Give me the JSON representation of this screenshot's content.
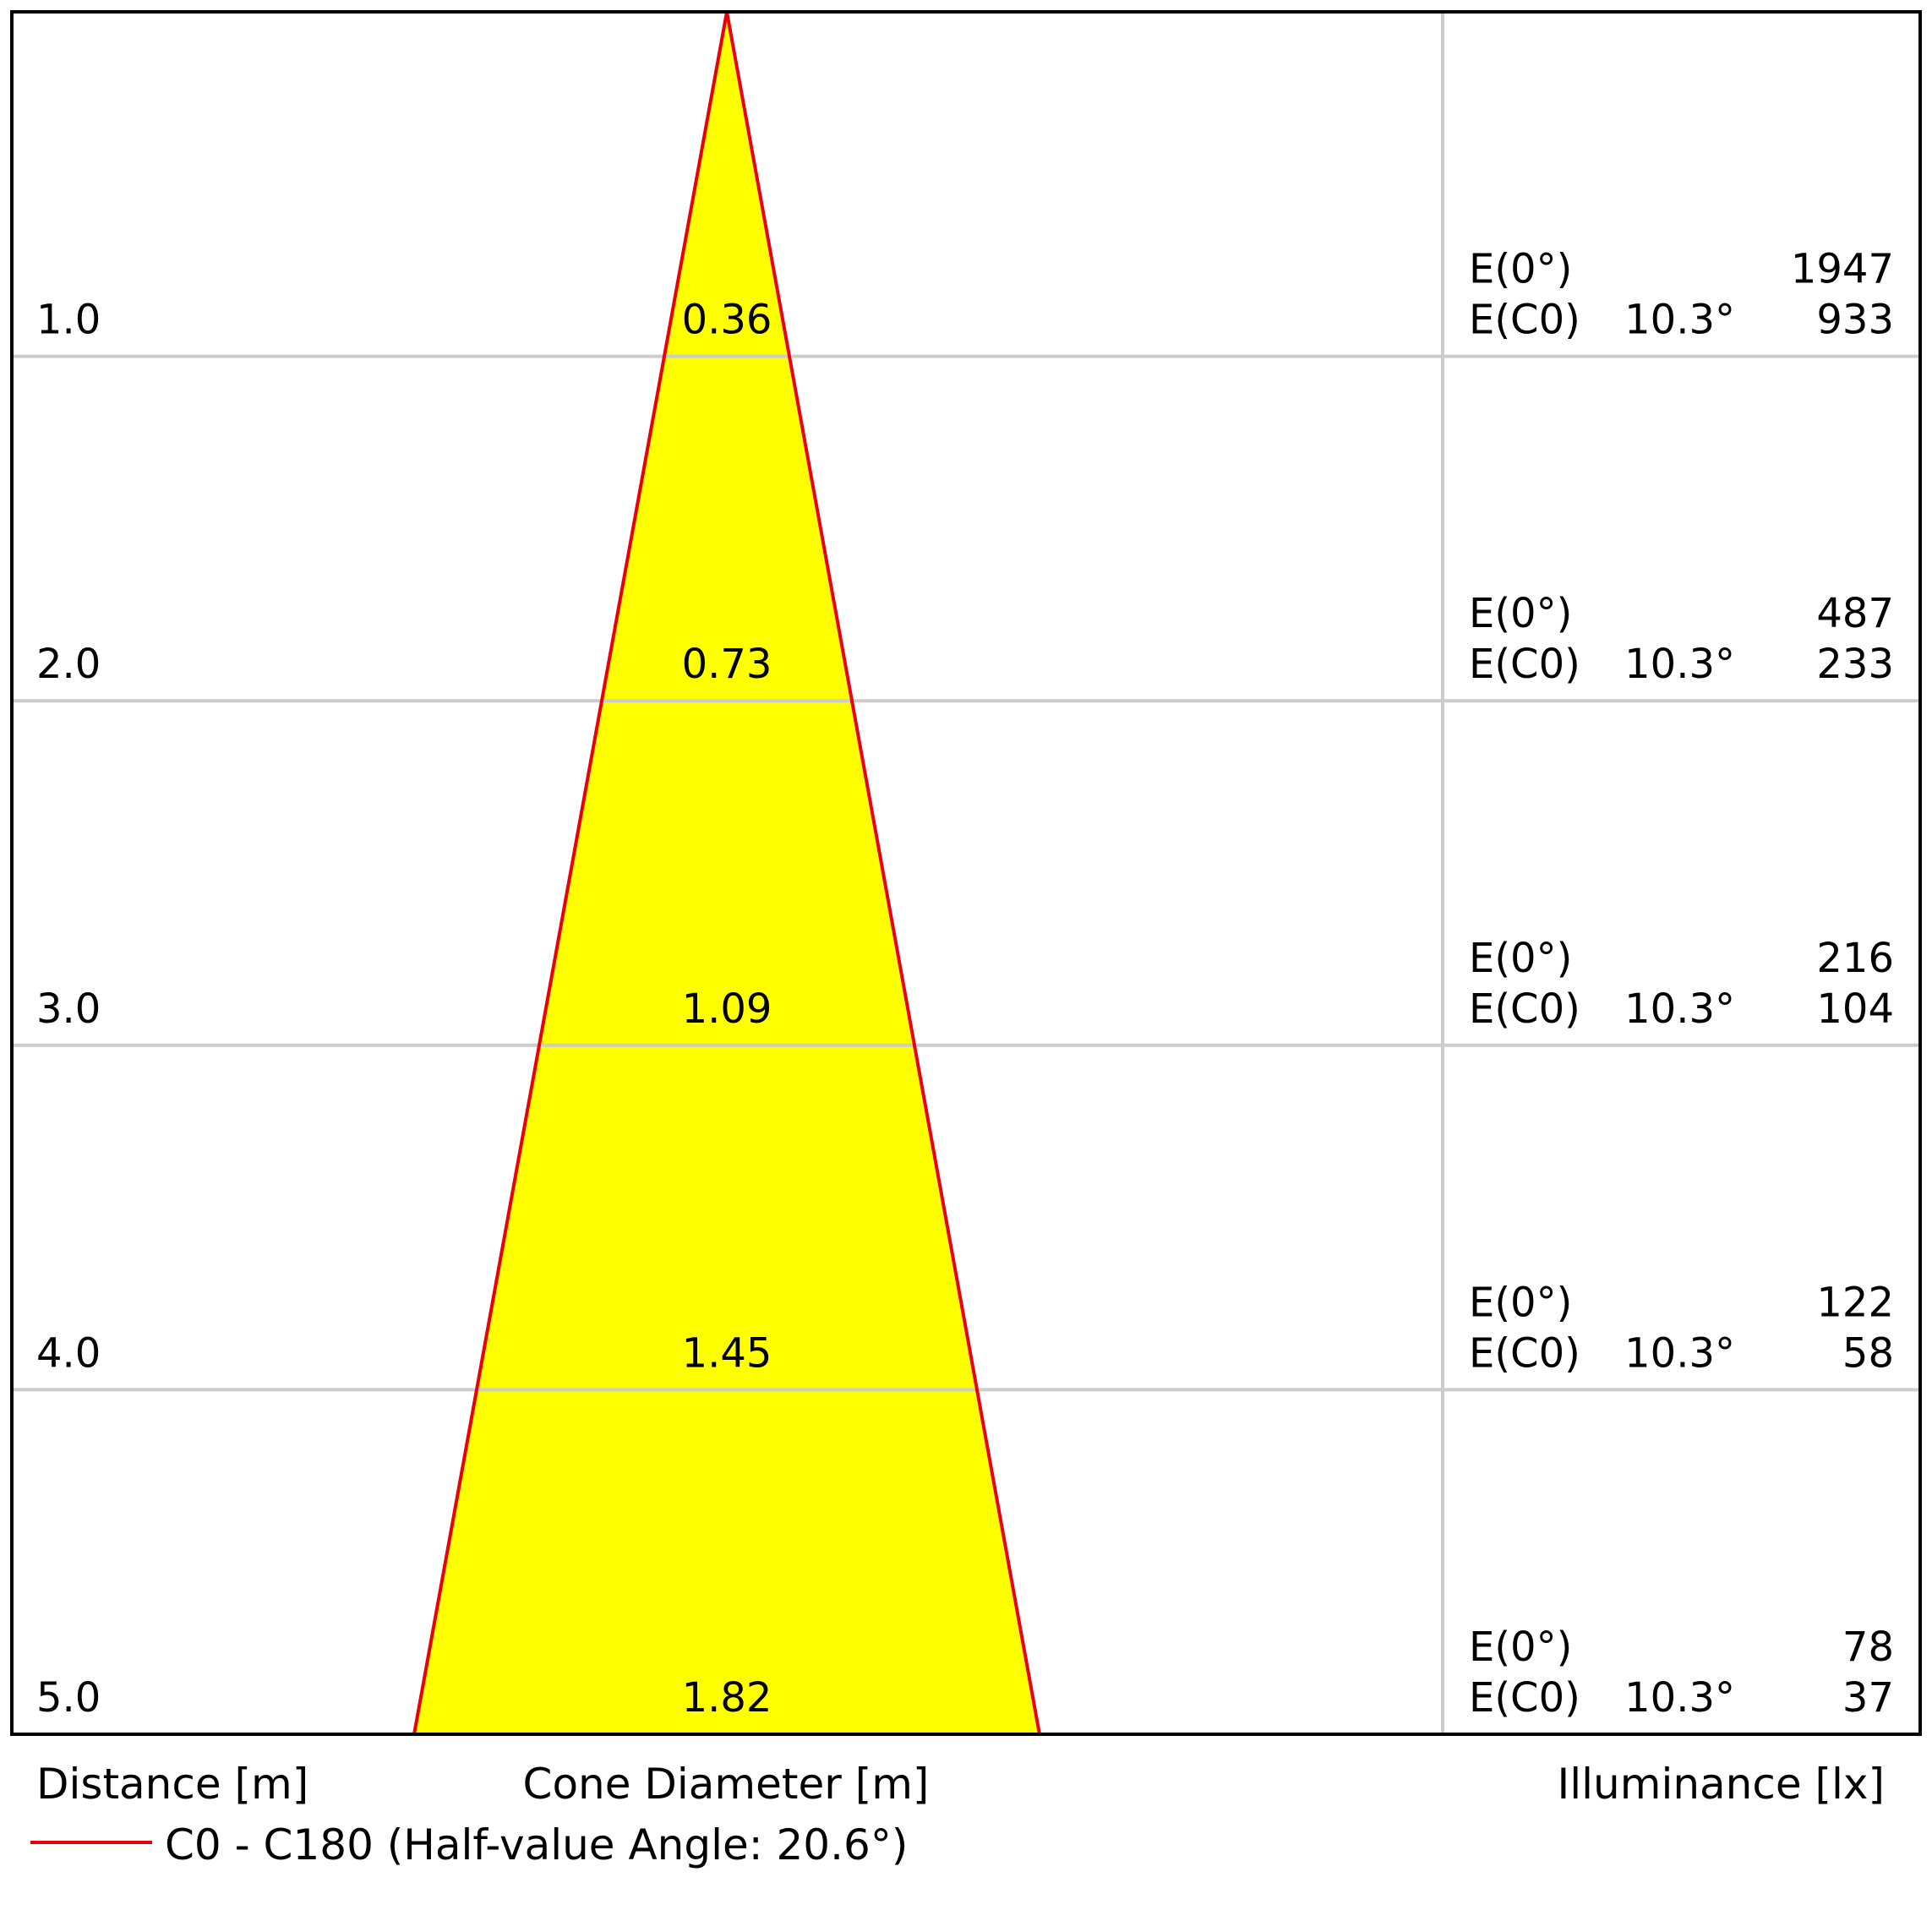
{
  "chart_data": {
    "type": "table",
    "labels": {
      "distance": "Distance [m]",
      "diameter": "Cone Diameter [m]",
      "illuminance": "Illuminance [lx]"
    },
    "legend": {
      "label": "C0 - C180 (Half-value Angle: 20.6°)",
      "color": "#e8000b"
    },
    "colors": {
      "fill": "#ffff00",
      "outline": "#e8000b",
      "grid": "#cccccc",
      "frame": "#000000"
    },
    "rows": [
      {
        "distance": "1.0",
        "diameter": 0.36,
        "diameter_label": "0.36",
        "e0_label": "E(0°)",
        "e0": "1947",
        "ec_label": "E(C0)",
        "ec_angle": "10.3°",
        "ec": "933"
      },
      {
        "distance": "2.0",
        "diameter": 0.73,
        "diameter_label": "0.73",
        "e0_label": "E(0°)",
        "e0": "487",
        "ec_label": "E(C0)",
        "ec_angle": "10.3°",
        "ec": "233"
      },
      {
        "distance": "3.0",
        "diameter": 1.09,
        "diameter_label": "1.09",
        "e0_label": "E(0°)",
        "e0": "216",
        "ec_label": "E(C0)",
        "ec_angle": "10.3°",
        "ec": "104"
      },
      {
        "distance": "4.0",
        "diameter": 1.45,
        "diameter_label": "1.45",
        "e0_label": "E(0°)",
        "e0": "122",
        "ec_label": "E(C0)",
        "ec_angle": "10.3°",
        "ec": "58"
      },
      {
        "distance": "5.0",
        "diameter": 1.82,
        "diameter_label": "1.82",
        "e0_label": "E(0°)",
        "e0": "78",
        "ec_label": "E(C0)",
        "ec_angle": "10.3°",
        "ec": "37"
      }
    ]
  }
}
